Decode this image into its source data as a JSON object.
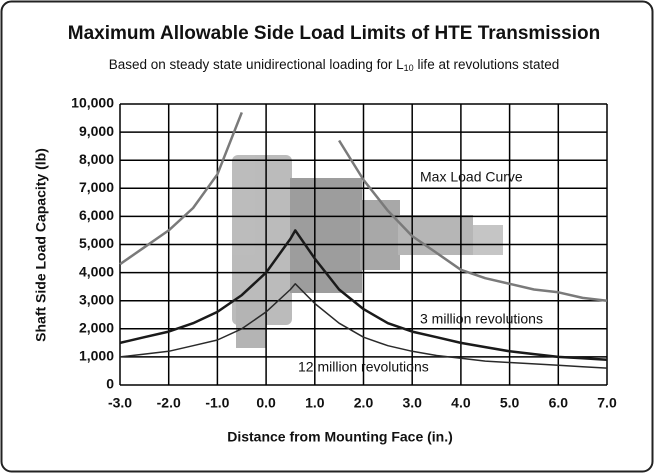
{
  "chart_data": {
    "type": "line",
    "title": "Maximum Allowable Side Load Limits of HTE Transmission",
    "subtitle": [
      "Based on steady state unidirectional loading for L",
      "10",
      " life at revolutions stated"
    ],
    "x_label": "Distance from Mounting Face (in.)",
    "y_label": "Shaft Side Load Capacity (lb)",
    "x": [
      -3,
      -2.5,
      -2,
      -1.5,
      -1,
      -0.5,
      0,
      0.5,
      0.6,
      1,
      1.5,
      2,
      2.5,
      3,
      3.5,
      4,
      4.5,
      5,
      5.5,
      6,
      6.5,
      7
    ],
    "series": [
      {
        "name": "Max Load Curve",
        "color": "#7a7a7a",
        "values": [
          4300,
          4900,
          5500,
          6300,
          7500,
          9700,
          null,
          null,
          null,
          null,
          8700,
          7300,
          6200,
          5300,
          4700,
          4100,
          3800,
          3600,
          3400,
          3300,
          3100,
          3000
        ]
      },
      {
        "name": "3 million revolutions",
        "color": "#1a1a1a",
        "values": [
          1500,
          1700,
          1900,
          2200,
          2600,
          3200,
          4000,
          5200,
          5500,
          4500,
          3400,
          2700,
          2200,
          1900,
          1700,
          1500,
          1350,
          1200,
          1100,
          1000,
          950,
          900
        ]
      },
      {
        "name": "12 million revolutions",
        "color": "#2a2a2a",
        "values": [
          1000,
          1100,
          1200,
          1400,
          1600,
          2000,
          2600,
          3400,
          3600,
          2900,
          2200,
          1700,
          1400,
          1200,
          1050,
          950,
          850,
          800,
          750,
          700,
          650,
          600
        ]
      }
    ],
    "xlim": [
      -3,
      7
    ],
    "xticks": [
      {
        "value": -3,
        "label": "-3.0"
      },
      {
        "value": -2,
        "label": "-2.0"
      },
      {
        "value": -1,
        "label": "-1.0"
      },
      {
        "value": 0,
        "label": "0.0"
      },
      {
        "value": 1,
        "label": "1.0"
      },
      {
        "value": 2,
        "label": "2.0"
      },
      {
        "value": 3,
        "label": "3.0"
      },
      {
        "value": 4,
        "label": "4.0"
      },
      {
        "value": 5,
        "label": "5.0"
      },
      {
        "value": 6,
        "label": "6.0"
      },
      {
        "value": 7,
        "label": "7.0"
      }
    ],
    "ylim": [
      0,
      10000
    ],
    "yticks": [
      0,
      {
        "value": 1000,
        "label": "1,000"
      },
      {
        "value": 2000,
        "label": "2,000"
      },
      {
        "value": 3000,
        "label": "3,000"
      },
      {
        "value": 4000,
        "label": "4,000"
      },
      {
        "value": 5000,
        "label": "5,000"
      },
      {
        "value": 6000,
        "label": "6,000"
      },
      {
        "value": 7000,
        "label": "7,000"
      },
      {
        "value": 8000,
        "label": "8,000"
      },
      {
        "value": 9000,
        "label": "9,000"
      },
      {
        "value": 10000,
        "label": "10,000"
      }
    ],
    "grid": true
  }
}
